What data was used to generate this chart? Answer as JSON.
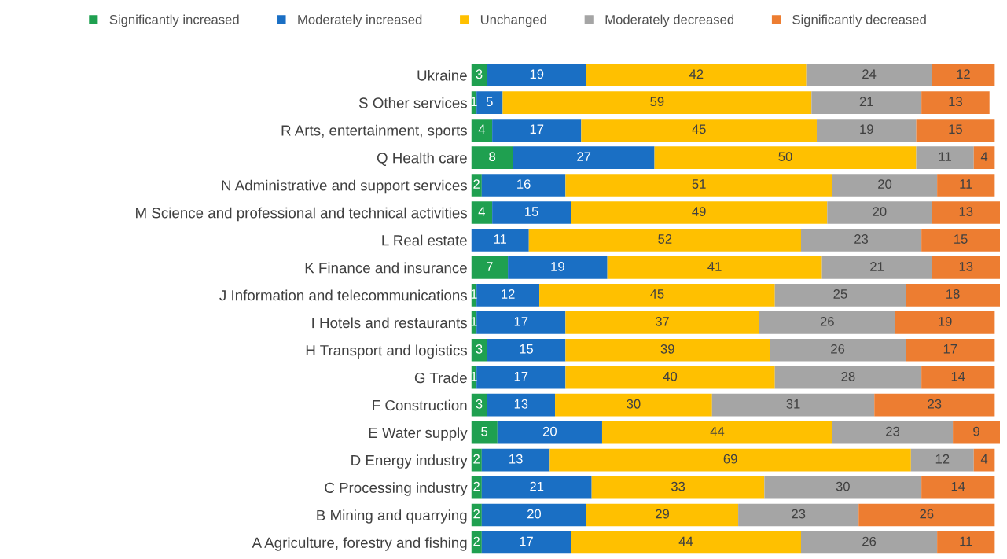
{
  "chart_data": {
    "type": "bar",
    "orientation": "horizontal",
    "stacked": true,
    "data_labels": true,
    "legend": "top",
    "grid": false,
    "categories": [
      "Ukraine",
      "S Other services",
      "R Arts, entertainment, sports",
      "Q Health care",
      "N Administrative and support services",
      "M Science and professional and technical activities",
      "L Real estate",
      "K Finance and insurance",
      "J Information and telecommunications",
      "I Hotels and restaurants",
      "H Transport and logistics",
      "G Trade",
      "F Construction",
      "E Water supply",
      "D Energy industry",
      "C Processing industry",
      "B Mining and quarrying",
      "A Agriculture, forestry and fishing"
    ],
    "series": [
      {
        "name": "Significantly increased",
        "color": "#1fa050",
        "values": [
          3,
          1,
          4,
          8,
          2,
          4,
          null,
          7,
          1,
          1,
          3,
          1,
          3,
          5,
          2,
          2,
          2,
          2
        ]
      },
      {
        "name": "Moderately increased",
        "color": "#1a6fc4",
        "values": [
          19,
          5,
          17,
          27,
          16,
          15,
          11,
          19,
          12,
          17,
          15,
          17,
          13,
          20,
          13,
          21,
          20,
          17
        ]
      },
      {
        "name": "Unchanged",
        "color": "#ffc000",
        "values": [
          42,
          59,
          45,
          50,
          51,
          49,
          52,
          41,
          45,
          37,
          39,
          40,
          30,
          44,
          69,
          33,
          29,
          44
        ]
      },
      {
        "name": "Moderately decreased",
        "color": "#a5a5a5",
        "values": [
          24,
          21,
          19,
          11,
          20,
          20,
          23,
          21,
          25,
          26,
          26,
          28,
          31,
          23,
          12,
          30,
          23,
          26
        ]
      },
      {
        "name": "Significantly decreased",
        "color": "#ed7d31",
        "values": [
          12,
          13,
          15,
          4,
          11,
          13,
          15,
          13,
          18,
          19,
          17,
          14,
          23,
          9,
          4,
          14,
          26,
          11
        ]
      }
    ]
  }
}
